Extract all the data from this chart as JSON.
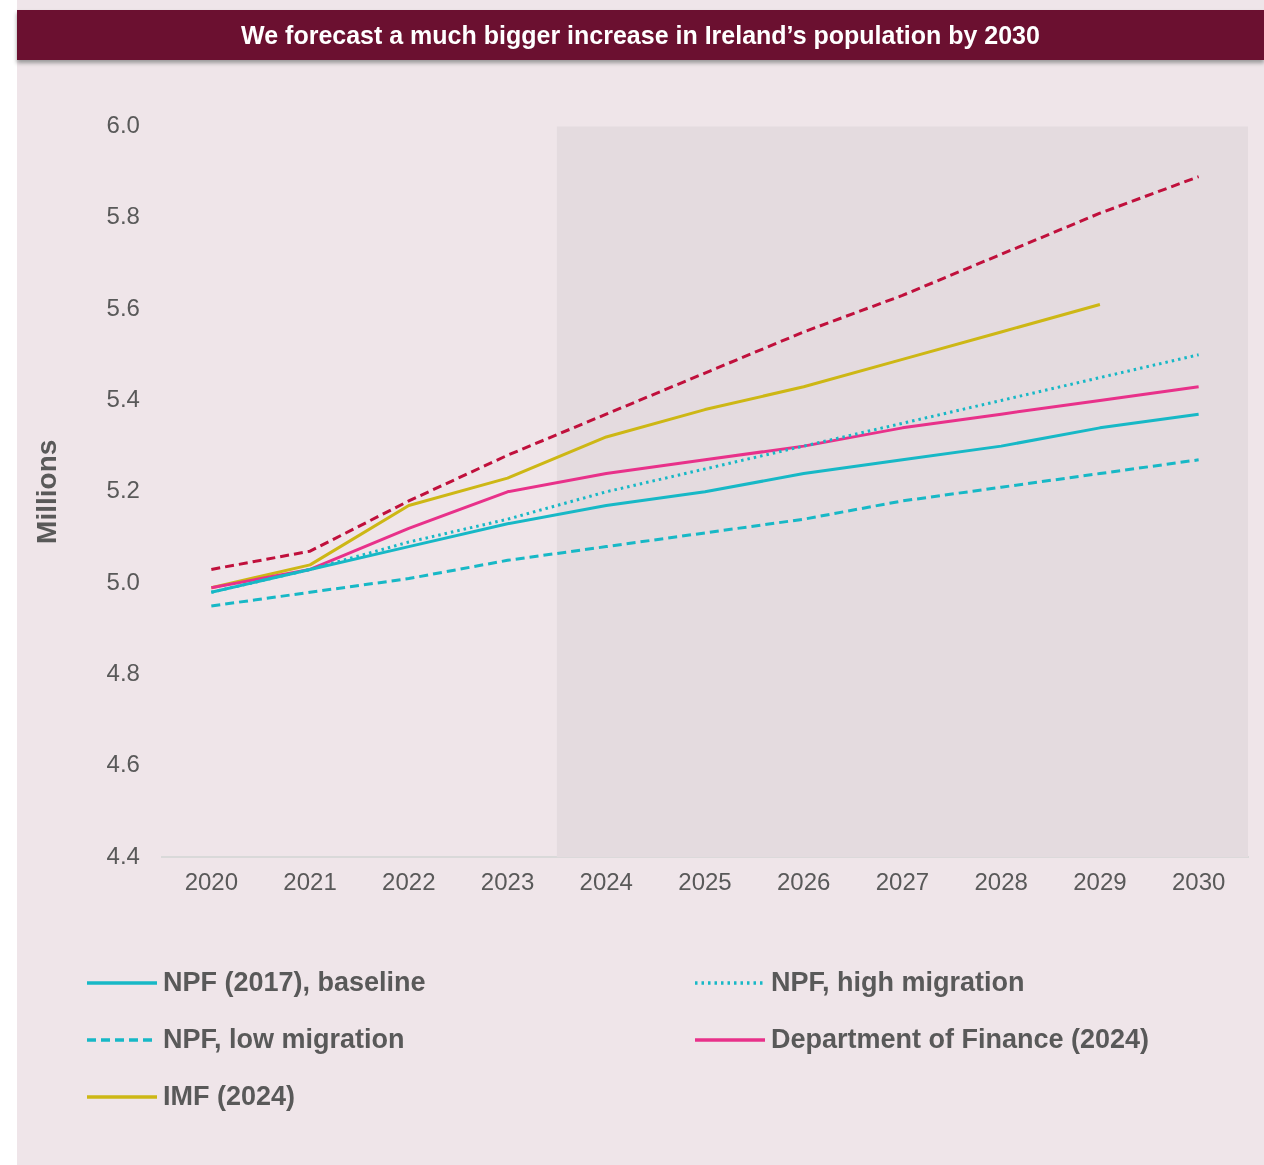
{
  "chart_data": {
    "type": "line",
    "title": "We forecast a much bigger increase in Ireland’s population by 2030",
    "ylabel": "Millions",
    "x": [
      2020,
      2021,
      2022,
      2023,
      2024,
      2025,
      2026,
      2027,
      2028,
      2029,
      2030
    ],
    "xlim": [
      2019.5,
      2030.5
    ],
    "xticks": [
      2020,
      2021,
      2022,
      2023,
      2024,
      2025,
      2026,
      2027,
      2028,
      2029,
      2030
    ],
    "ylim": [
      4.4,
      6.0
    ],
    "yticks": [
      {
        "value": 4.4,
        "label": "4.4"
      },
      {
        "value": 4.6,
        "label": "4.6"
      },
      {
        "value": 4.8,
        "label": "4.8"
      },
      {
        "value": 5.0,
        "label": "5.0"
      },
      {
        "value": 5.2,
        "label": "5.2"
      },
      {
        "value": 5.4,
        "label": "5.4"
      },
      {
        "value": 5.6,
        "label": "5.6"
      },
      {
        "value": 5.8,
        "label": "5.8"
      },
      {
        "value": 6.0,
        "label": "6.0"
      }
    ],
    "grid": false,
    "legend": "bottom",
    "marker": "none",
    "bands": [
      {
        "axis": "x",
        "from": 2023.5,
        "to": 2030.5,
        "color": "#e4dbdf"
      }
    ],
    "series": [
      {
        "color": "#c0103c",
        "line_style": "dashed",
        "values": [
          5.03,
          5.07,
          5.18,
          5.28,
          5.37,
          5.46,
          5.55,
          5.63,
          5.72,
          5.81,
          5.89
        ]
      },
      {
        "name": "NPF (2017), baseline",
        "color": "#17b8c6",
        "line_style": "solid",
        "values": [
          4.98,
          5.03,
          5.08,
          5.13,
          5.17,
          5.2,
          5.24,
          5.27,
          5.3,
          5.34,
          5.37
        ]
      },
      {
        "name": "NPF, high migration",
        "color": "#17b8c6",
        "line_style": "dotted",
        "values": [
          4.98,
          5.03,
          5.09,
          5.14,
          5.2,
          5.25,
          5.3,
          5.35,
          5.4,
          5.45,
          5.5
        ]
      },
      {
        "name": "NPF, low migration",
        "color": "#17b8c6",
        "line_style": "dashed",
        "values": [
          4.95,
          4.98,
          5.01,
          5.05,
          5.08,
          5.11,
          5.14,
          5.18,
          5.21,
          5.24,
          5.27
        ]
      },
      {
        "name": "Department of Finance (2024)",
        "color": "#e8318a",
        "line_style": "solid",
        "values": [
          4.99,
          5.03,
          5.12,
          5.2,
          5.24,
          5.27,
          5.3,
          5.34,
          5.37,
          5.4,
          5.43
        ]
      },
      {
        "name": "IMF (2024)",
        "color": "#cdb715",
        "line_style": "solid",
        "values": [
          4.99,
          5.04,
          5.17,
          5.23,
          5.32,
          5.38,
          5.43,
          5.49,
          5.55,
          5.61,
          null
        ]
      }
    ]
  }
}
